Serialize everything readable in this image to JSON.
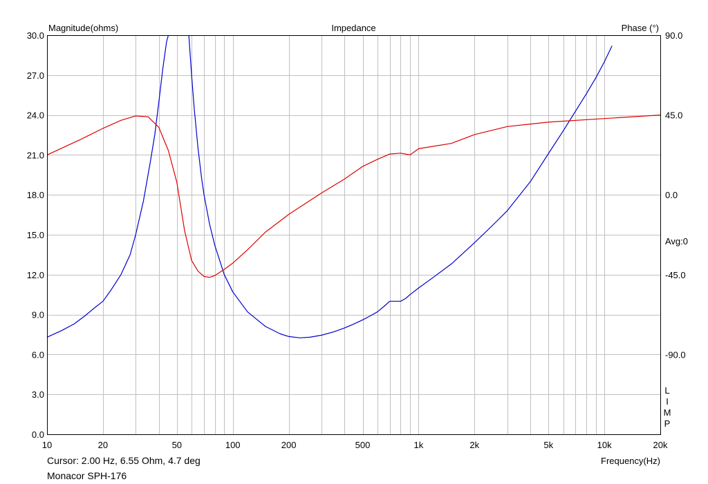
{
  "chart_data": {
    "type": "line",
    "title": "Impedance",
    "y_left_label": "Magnitude(ohms)",
    "y_right_label": "Phase (°)",
    "x_label": "Frequency(Hz)",
    "x_scale": "log",
    "x_range": [
      10,
      20000
    ],
    "y_left_range": [
      0,
      30
    ],
    "y_right_range": [
      -135,
      90
    ],
    "grid": true,
    "x_ticks": [
      {
        "value": 10,
        "label": "10"
      },
      {
        "value": 20,
        "label": "20"
      },
      {
        "value": 50,
        "label": "50"
      },
      {
        "value": 100,
        "label": "100"
      },
      {
        "value": 200,
        "label": "200"
      },
      {
        "value": 500,
        "label": "500"
      },
      {
        "value": 1000,
        "label": "1k"
      },
      {
        "value": 2000,
        "label": "2k"
      },
      {
        "value": 5000,
        "label": "5k"
      },
      {
        "value": 10000,
        "label": "10k"
      },
      {
        "value": 20000,
        "label": "20k"
      }
    ],
    "y_left_ticks": [
      {
        "value": 0,
        "label": "0.0"
      },
      {
        "value": 3,
        "label": "3.0"
      },
      {
        "value": 6,
        "label": "6.0"
      },
      {
        "value": 9,
        "label": "9.0"
      },
      {
        "value": 12,
        "label": "12.0"
      },
      {
        "value": 15,
        "label": "15.0"
      },
      {
        "value": 18,
        "label": "18.0"
      },
      {
        "value": 21,
        "label": "21.0"
      },
      {
        "value": 24,
        "label": "24.0"
      },
      {
        "value": 27,
        "label": "27.0"
      },
      {
        "value": 30,
        "label": "30.0"
      }
    ],
    "y_right_ticks": [
      {
        "value": 90,
        "label": "90.0"
      },
      {
        "value": 45,
        "label": "45.0"
      },
      {
        "value": 0,
        "label": "0.0"
      },
      {
        "value": -45,
        "label": "-45.0"
      },
      {
        "value": -90,
        "label": "-90.0"
      }
    ],
    "avg_label": "Avg:0",
    "side_letters": [
      "L",
      "I",
      "M",
      "P"
    ],
    "series": [
      {
        "axis": "left",
        "color": "#0000cc",
        "x": [
          10,
          12,
          14,
          16,
          18,
          20,
          22,
          25,
          28,
          30,
          33,
          36,
          38,
          40,
          42,
          44,
          45,
          58,
          60,
          62,
          65,
          68,
          70,
          75,
          80,
          90,
          100,
          120,
          150,
          180,
          200,
          230,
          260,
          300,
          350,
          400,
          450,
          500,
          550,
          600,
          650,
          700,
          750,
          800,
          850,
          900,
          1000,
          1200,
          1500,
          2000,
          2500,
          3000,
          4000,
          5000,
          6000,
          7000,
          8000,
          9000,
          10000,
          11000
        ],
        "y": [
          7.3,
          7.8,
          8.3,
          8.9,
          9.5,
          10.0,
          10.8,
          12.0,
          13.5,
          15.0,
          17.5,
          20.5,
          22.5,
          25.0,
          27.5,
          29.5,
          30.0,
          30.0,
          27.0,
          24.5,
          21.5,
          19.2,
          18.0,
          15.8,
          14.2,
          12.0,
          10.7,
          9.2,
          8.1,
          7.55,
          7.35,
          7.25,
          7.3,
          7.45,
          7.7,
          8.0,
          8.3,
          8.6,
          8.9,
          9.2,
          9.6,
          10.0,
          10.0,
          10.0,
          10.2,
          10.5,
          11.0,
          11.8,
          12.8,
          14.4,
          15.7,
          16.8,
          19.0,
          21.1,
          22.8,
          24.3,
          25.6,
          26.8,
          28.0,
          29.2
        ]
      },
      {
        "axis": "right",
        "color": "#dd0000",
        "x": [
          10,
          15,
          20,
          25,
          30,
          35,
          40,
          45,
          50,
          55,
          60,
          65,
          70,
          75,
          80,
          90,
          100,
          120,
          150,
          200,
          300,
          400,
          500,
          600,
          700,
          800,
          900,
          1000,
          1500,
          2000,
          3000,
          5000,
          10000,
          20000
        ],
        "y": [
          22.5,
          31.0,
          37.5,
          42.0,
          44.5,
          44.0,
          38.0,
          25.0,
          7.0,
          -20.0,
          -37.0,
          -43.0,
          -46.0,
          -46.5,
          -45.5,
          -42.0,
          -38.5,
          -31.0,
          -21.0,
          -11.0,
          1.0,
          9.0,
          16.0,
          20.0,
          23.0,
          23.5,
          22.5,
          26.0,
          29.0,
          34.0,
          38.5,
          41.0,
          43.0,
          45.0
        ]
      }
    ]
  },
  "cursor_text": "Cursor: 2.00 Hz, 6.55 Ohm, 4.7 deg",
  "device_name": "Monacor SPH-176"
}
